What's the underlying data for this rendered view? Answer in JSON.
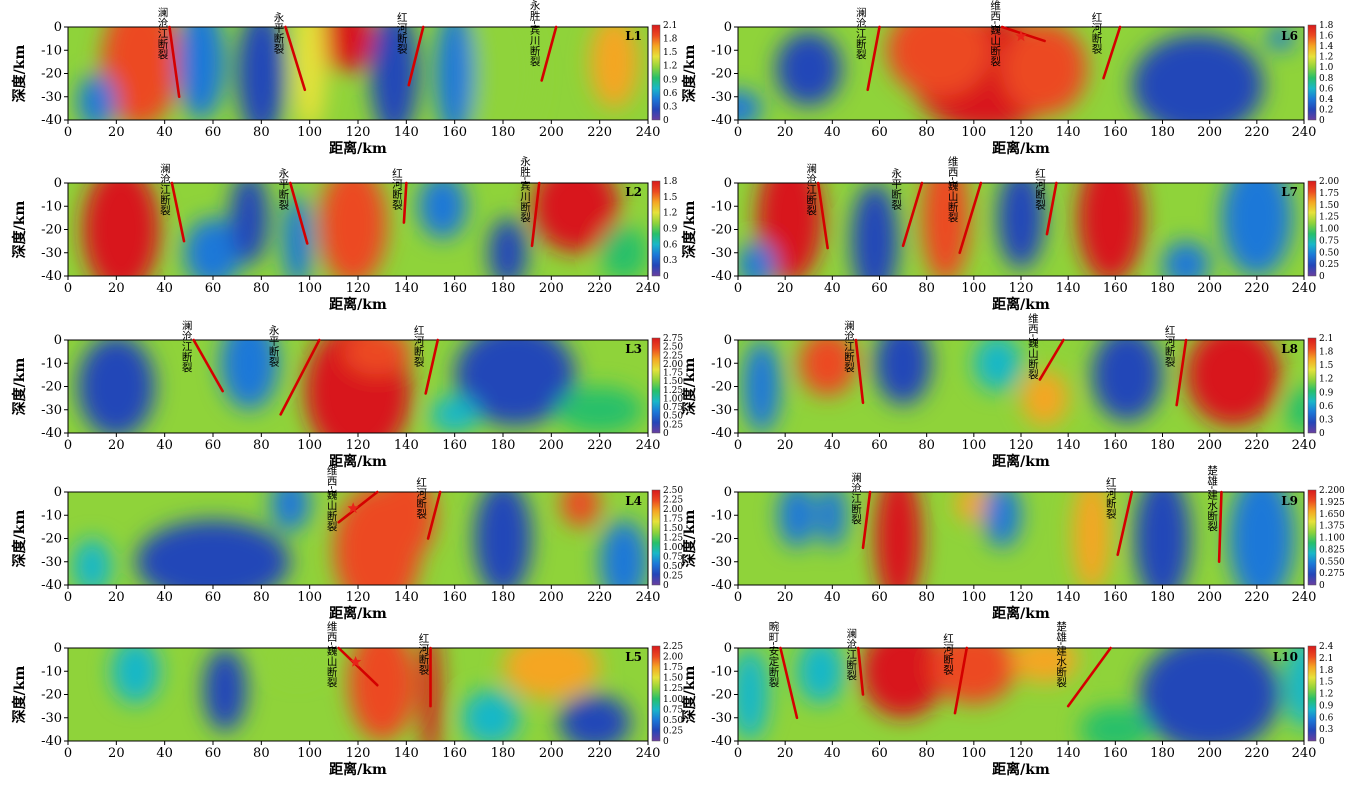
{
  "colors": {
    "fault_line": "#d40000",
    "epicenter_star": "#e8231a",
    "colormap": [
      "#6a3fa0",
      "#2446b8",
      "#1b78d8",
      "#19b7c8",
      "#27c06a",
      "#8fd33a",
      "#e6e23a",
      "#f5a623",
      "#ec4a20",
      "#d8191c"
    ]
  },
  "axes": {
    "x_label": "距离/km",
    "y_label": "深度/km",
    "x_ticks": [
      0,
      20,
      40,
      60,
      80,
      100,
      120,
      140,
      160,
      180,
      200,
      220,
      240
    ],
    "y_ticks": [
      0,
      -10,
      -20,
      -30,
      -40
    ],
    "xlim": [
      0,
      240
    ],
    "ylim": [
      -40,
      0
    ]
  },
  "chart_data": [
    {
      "type": "heatmap",
      "panel_id": "L1",
      "colorbar_ticks": [
        "2.1",
        "1.8",
        "1.5",
        "1.2",
        "0.9",
        "0.6",
        "0.3",
        "0"
      ],
      "faults": [
        {
          "label": "澜沧江断裂",
          "x_top": 42,
          "x_bottom": 46,
          "depth": -30
        },
        {
          "label": "永平断裂",
          "x_top": 90,
          "x_bottom": 98,
          "depth": -27
        },
        {
          "label": "红河断裂",
          "x_top": 147,
          "x_bottom": 141,
          "depth": -25
        },
        {
          "label": "永胜-宾川断裂",
          "x_top": 202,
          "x_bottom": 196,
          "depth": -23
        }
      ],
      "stars": [],
      "blobs": [
        {
          "x": 30,
          "y": -15,
          "rx": 16,
          "ry": 28,
          "v": 0.85
        },
        {
          "x": 115,
          "y": -5,
          "rx": 12,
          "ry": 14,
          "v": 0.98
        },
        {
          "x": 100,
          "y": -15,
          "rx": 7,
          "ry": 30,
          "v": 0.7
        },
        {
          "x": 180,
          "y": -20,
          "rx": 14,
          "ry": 30,
          "v": 0.6
        },
        {
          "x": 226,
          "y": -15,
          "rx": 10,
          "ry": 20,
          "v": 0.75
        },
        {
          "x": 55,
          "y": -15,
          "rx": 10,
          "ry": 25,
          "v": 0.2
        },
        {
          "x": 80,
          "y": -20,
          "rx": 10,
          "ry": 28,
          "v": 0.12
        },
        {
          "x": 135,
          "y": -20,
          "rx": 10,
          "ry": 28,
          "v": 0.15
        },
        {
          "x": 160,
          "y": -20,
          "rx": 8,
          "ry": 28,
          "v": 0.18
        },
        {
          "x": 12,
          "y": -32,
          "rx": 8,
          "ry": 12,
          "v": 0.2
        }
      ]
    },
    {
      "type": "heatmap",
      "panel_id": "L2",
      "colorbar_ticks": [
        "1.8",
        "1.5",
        "1.2",
        "0.9",
        "0.6",
        "0.3",
        "0"
      ],
      "faults": [
        {
          "label": "澜沧江断裂",
          "x_top": 43,
          "x_bottom": 48,
          "depth": -25
        },
        {
          "label": "永平断裂",
          "x_top": 92,
          "x_bottom": 99,
          "depth": -26
        },
        {
          "label": "红河断裂",
          "x_top": 140,
          "x_bottom": 139,
          "depth": -17
        },
        {
          "label": "永胜-宾川断裂",
          "x_top": 195,
          "x_bottom": 192,
          "depth": -27
        }
      ],
      "stars": [],
      "blobs": [
        {
          "x": 22,
          "y": -20,
          "rx": 16,
          "ry": 28,
          "v": 1.0
        },
        {
          "x": 118,
          "y": -18,
          "rx": 14,
          "ry": 26,
          "v": 0.92
        },
        {
          "x": 210,
          "y": -10,
          "rx": 18,
          "ry": 20,
          "v": 0.95
        },
        {
          "x": 60,
          "y": -30,
          "rx": 12,
          "ry": 15,
          "v": 0.25
        },
        {
          "x": 75,
          "y": -15,
          "rx": 8,
          "ry": 20,
          "v": 0.12
        },
        {
          "x": 155,
          "y": -10,
          "rx": 10,
          "ry": 14,
          "v": 0.2
        },
        {
          "x": 182,
          "y": -30,
          "rx": 8,
          "ry": 15,
          "v": 0.12
        },
        {
          "x": 95,
          "y": -25,
          "rx": 6,
          "ry": 20,
          "v": 0.2
        },
        {
          "x": 230,
          "y": -30,
          "rx": 10,
          "ry": 12,
          "v": 0.4
        }
      ]
    },
    {
      "type": "heatmap",
      "panel_id": "L3",
      "colorbar_ticks": [
        "2.75",
        "2.50",
        "2.25",
        "2.00",
        "1.75",
        "1.50",
        "1.25",
        "1.00",
        "0.75",
        "0.50",
        "0.25",
        "0"
      ],
      "faults": [
        {
          "label": "澜沧江断裂",
          "x_top": 52,
          "x_bottom": 64,
          "depth": -22
        },
        {
          "label": "永平断裂",
          "x_top": 104,
          "x_bottom": 88,
          "depth": -32
        },
        {
          "label": "红河断裂",
          "x_top": 153,
          "x_bottom": 148,
          "depth": -23
        }
      ],
      "stars": [],
      "blobs": [
        {
          "x": 120,
          "y": -22,
          "rx": 22,
          "ry": 30,
          "v": 0.95
        },
        {
          "x": 128,
          "y": -5,
          "rx": 14,
          "ry": 10,
          "v": 0.9
        },
        {
          "x": 20,
          "y": -20,
          "rx": 16,
          "ry": 22,
          "v": 0.15
        },
        {
          "x": 75,
          "y": -10,
          "rx": 12,
          "ry": 20,
          "v": 0.18
        },
        {
          "x": 185,
          "y": -15,
          "rx": 25,
          "ry": 22,
          "v": 0.12
        },
        {
          "x": 220,
          "y": -30,
          "rx": 18,
          "ry": 10,
          "v": 0.45
        },
        {
          "x": 160,
          "y": -32,
          "rx": 10,
          "ry": 8,
          "v": 0.3
        }
      ]
    },
    {
      "type": "heatmap",
      "panel_id": "L4",
      "colorbar_ticks": [
        "2.50",
        "2.25",
        "2.00",
        "1.75",
        "1.50",
        "1.25",
        "1.00",
        "0.75",
        "0.50",
        "0.25",
        "0"
      ],
      "faults": [
        {
          "label": "维西-巍山断裂",
          "x_top": 128,
          "x_bottom": 112,
          "depth": -13
        },
        {
          "label": "红河断裂",
          "x_top": 154,
          "x_bottom": 149,
          "depth": -20
        }
      ],
      "stars": [
        {
          "x": 118,
          "y": -7
        }
      ],
      "blobs": [
        {
          "x": 128,
          "y": -25,
          "rx": 18,
          "ry": 28,
          "v": 0.92
        },
        {
          "x": 140,
          "y": -10,
          "rx": 12,
          "ry": 20,
          "v": 0.85
        },
        {
          "x": 212,
          "y": -5,
          "rx": 8,
          "ry": 10,
          "v": 0.88
        },
        {
          "x": 60,
          "y": -30,
          "rx": 32,
          "ry": 18,
          "v": 0.15
        },
        {
          "x": 92,
          "y": -5,
          "rx": 8,
          "ry": 12,
          "v": 0.2
        },
        {
          "x": 180,
          "y": -20,
          "rx": 12,
          "ry": 25,
          "v": 0.15
        },
        {
          "x": 230,
          "y": -30,
          "rx": 10,
          "ry": 18,
          "v": 0.18
        },
        {
          "x": 10,
          "y": -32,
          "rx": 8,
          "ry": 12,
          "v": 0.3
        }
      ]
    },
    {
      "type": "heatmap",
      "panel_id": "L5",
      "colorbar_ticks": [
        "2.25",
        "2.00",
        "1.75",
        "1.50",
        "1.25",
        "1.00",
        "0.75",
        "0.50",
        "0.25",
        "0"
      ],
      "faults": [
        {
          "label": "维西-巍山断裂",
          "x_top": 112,
          "x_bottom": 128,
          "depth": -16
        },
        {
          "label": "红河断裂",
          "x_top": 150,
          "x_bottom": 150,
          "depth": -25
        }
      ],
      "stars": [
        {
          "x": 119,
          "y": -6
        }
      ],
      "blobs": [
        {
          "x": 130,
          "y": -15,
          "rx": 14,
          "ry": 25,
          "v": 0.88
        },
        {
          "x": 150,
          "y": -20,
          "rx": 4,
          "ry": 30,
          "v": 0.98
        },
        {
          "x": 200,
          "y": -8,
          "rx": 20,
          "ry": 14,
          "v": 0.78
        },
        {
          "x": 65,
          "y": -18,
          "rx": 9,
          "ry": 18,
          "v": 0.12
        },
        {
          "x": 28,
          "y": -10,
          "rx": 10,
          "ry": 14,
          "v": 0.35
        },
        {
          "x": 218,
          "y": -32,
          "rx": 15,
          "ry": 12,
          "v": 0.15
        },
        {
          "x": 175,
          "y": -30,
          "rx": 12,
          "ry": 12,
          "v": 0.35
        },
        {
          "x": 95,
          "y": -5,
          "rx": 10,
          "ry": 8,
          "v": 0.55
        }
      ]
    },
    {
      "type": "heatmap",
      "panel_id": "L6",
      "colorbar_ticks": [
        "1.8",
        "1.6",
        "1.4",
        "1.2",
        "1.0",
        "0.8",
        "0.6",
        "0.4",
        "0.2",
        "0"
      ],
      "faults": [
        {
          "label": "澜沧江断裂",
          "x_top": 60,
          "x_bottom": 55,
          "depth": -27
        },
        {
          "label": "维西-巍山断裂",
          "x_top": 112,
          "x_bottom": 130,
          "depth": -6
        },
        {
          "label": "红河断裂",
          "x_top": 162,
          "x_bottom": 155,
          "depth": -22
        }
      ],
      "stars": [
        {
          "x": 120,
          "y": -4
        }
      ],
      "blobs": [
        {
          "x": 105,
          "y": -20,
          "rx": 32,
          "ry": 25,
          "v": 0.98
        },
        {
          "x": 85,
          "y": -10,
          "rx": 22,
          "ry": 20,
          "v": 0.88
        },
        {
          "x": 130,
          "y": -18,
          "rx": 18,
          "ry": 20,
          "v": 0.85
        },
        {
          "x": 30,
          "y": -18,
          "rx": 14,
          "ry": 16,
          "v": 0.15
        },
        {
          "x": 195,
          "y": -25,
          "rx": 28,
          "ry": 22,
          "v": 0.15
        },
        {
          "x": 230,
          "y": -5,
          "rx": 6,
          "ry": 5,
          "v": 0.2
        },
        {
          "x": 0,
          "y": -35,
          "rx": 10,
          "ry": 8,
          "v": 0.2
        }
      ]
    },
    {
      "type": "heatmap",
      "panel_id": "L7",
      "colorbar_ticks": [
        "2.00",
        "1.75",
        "1.50",
        "1.25",
        "1.00",
        "0.75",
        "0.50",
        "0.25",
        "0"
      ],
      "faults": [
        {
          "label": "澜沧江断裂",
          "x_top": 34,
          "x_bottom": 38,
          "depth": -28
        },
        {
          "label": "永平断裂",
          "x_top": 78,
          "x_bottom": 70,
          "depth": -27
        },
        {
          "label": "维西-巍山断裂",
          "x_top": 103,
          "x_bottom": 94,
          "depth": -30
        },
        {
          "label": "红河断裂",
          "x_top": 135,
          "x_bottom": 131,
          "depth": -22
        }
      ],
      "stars": [],
      "blobs": [
        {
          "x": 22,
          "y": -15,
          "rx": 14,
          "ry": 28,
          "v": 0.95
        },
        {
          "x": 158,
          "y": -15,
          "rx": 14,
          "ry": 28,
          "v": 0.95
        },
        {
          "x": 88,
          "y": -15,
          "rx": 10,
          "ry": 28,
          "v": 0.85
        },
        {
          "x": 58,
          "y": -25,
          "rx": 10,
          "ry": 25,
          "v": 0.15
        },
        {
          "x": 120,
          "y": -15,
          "rx": 10,
          "ry": 22,
          "v": 0.12
        },
        {
          "x": 220,
          "y": -15,
          "rx": 15,
          "ry": 25,
          "v": 0.18
        },
        {
          "x": 190,
          "y": -35,
          "rx": 10,
          "ry": 10,
          "v": 0.25
        },
        {
          "x": 8,
          "y": -35,
          "rx": 8,
          "ry": 10,
          "v": 0.25
        }
      ]
    },
    {
      "type": "heatmap",
      "panel_id": "L8",
      "colorbar_ticks": [
        "2.1",
        "1.8",
        "1.5",
        "1.2",
        "0.9",
        "0.6",
        "0.3",
        "0"
      ],
      "faults": [
        {
          "label": "澜沧江断裂",
          "x_top": 50,
          "x_bottom": 53,
          "depth": -27
        },
        {
          "label": "维西-巍山断裂",
          "x_top": 138,
          "x_bottom": 128,
          "depth": -17
        },
        {
          "label": "红河断裂",
          "x_top": 190,
          "x_bottom": 186,
          "depth": -28
        }
      ],
      "stars": [],
      "blobs": [
        {
          "x": 210,
          "y": -15,
          "rx": 20,
          "ry": 22,
          "v": 0.95
        },
        {
          "x": 38,
          "y": -10,
          "rx": 12,
          "ry": 14,
          "v": 0.85
        },
        {
          "x": 130,
          "y": -25,
          "rx": 10,
          "ry": 12,
          "v": 0.75
        },
        {
          "x": 70,
          "y": -10,
          "rx": 12,
          "ry": 18,
          "v": 0.15
        },
        {
          "x": 165,
          "y": -15,
          "rx": 15,
          "ry": 20,
          "v": 0.15
        },
        {
          "x": 110,
          "y": -10,
          "rx": 10,
          "ry": 12,
          "v": 0.3
        },
        {
          "x": 10,
          "y": -20,
          "rx": 8,
          "ry": 20,
          "v": 0.25
        },
        {
          "x": 240,
          "y": -30,
          "rx": 8,
          "ry": 10,
          "v": 0.4
        }
      ]
    },
    {
      "type": "heatmap",
      "panel_id": "L9",
      "colorbar_ticks": [
        "2.200",
        "1.925",
        "1.650",
        "1.375",
        "1.100",
        "0.825",
        "0.550",
        "0.275",
        "0"
      ],
      "faults": [
        {
          "label": "澜沧江断裂",
          "x_top": 56,
          "x_bottom": 53,
          "depth": -24
        },
        {
          "label": "红河断裂",
          "x_top": 167,
          "x_bottom": 161,
          "depth": -27
        },
        {
          "label": "楚雄-建水断裂",
          "x_top": 205,
          "x_bottom": 204,
          "depth": -30
        }
      ],
      "stars": [],
      "blobs": [
        {
          "x": 68,
          "y": -20,
          "rx": 10,
          "ry": 30,
          "v": 0.98
        },
        {
          "x": 100,
          "y": -5,
          "rx": 8,
          "ry": 8,
          "v": 0.8
        },
        {
          "x": 150,
          "y": -18,
          "rx": 8,
          "ry": 25,
          "v": 0.78
        },
        {
          "x": 25,
          "y": -10,
          "rx": 8,
          "ry": 14,
          "v": 0.2
        },
        {
          "x": 40,
          "y": -10,
          "rx": 6,
          "ry": 14,
          "v": 0.2
        },
        {
          "x": 112,
          "y": -10,
          "rx": 8,
          "ry": 14,
          "v": 0.2
        },
        {
          "x": 180,
          "y": -20,
          "rx": 12,
          "ry": 28,
          "v": 0.12
        },
        {
          "x": 222,
          "y": -20,
          "rx": 14,
          "ry": 28,
          "v": 0.2
        }
      ]
    },
    {
      "type": "heatmap",
      "panel_id": "L10",
      "colorbar_ticks": [
        "2.4",
        "2.1",
        "1.8",
        "1.5",
        "1.2",
        "0.9",
        "0.6",
        "0.3",
        "0"
      ],
      "faults": [
        {
          "label": "畹町-安定断裂",
          "x_top": 18,
          "x_bottom": 25,
          "depth": -30
        },
        {
          "label": "澜沧江断裂",
          "x_top": 51,
          "x_bottom": 53,
          "depth": -20
        },
        {
          "label": "红河断裂",
          "x_top": 97,
          "x_bottom": 92,
          "depth": -28
        },
        {
          "label": "楚雄-建水断裂",
          "x_top": 158,
          "x_bottom": 140,
          "depth": -25
        }
      ],
      "stars": [],
      "blobs": [
        {
          "x": 70,
          "y": -10,
          "rx": 18,
          "ry": 20,
          "v": 0.98
        },
        {
          "x": 100,
          "y": -8,
          "rx": 18,
          "ry": 16,
          "v": 0.9
        },
        {
          "x": 130,
          "y": -5,
          "rx": 14,
          "ry": 10,
          "v": 0.82
        },
        {
          "x": 35,
          "y": -10,
          "rx": 10,
          "ry": 14,
          "v": 0.3
        },
        {
          "x": 200,
          "y": -20,
          "rx": 30,
          "ry": 25,
          "v": 0.15
        },
        {
          "x": 240,
          "y": -15,
          "rx": 8,
          "ry": 20,
          "v": 0.35
        },
        {
          "x": 5,
          "y": -20,
          "rx": 8,
          "ry": 20,
          "v": 0.3
        },
        {
          "x": 160,
          "y": -35,
          "rx": 15,
          "ry": 10,
          "v": 0.4
        }
      ]
    }
  ]
}
